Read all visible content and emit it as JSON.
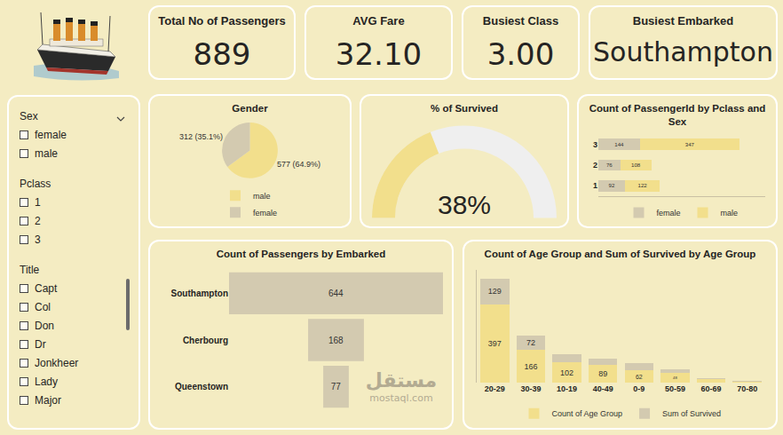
{
  "cards": [
    {
      "title": "Total No of Passengers",
      "value": "889"
    },
    {
      "title": "AVG Fare",
      "value": "32.10"
    },
    {
      "title": "Busiest Class",
      "value": "3.00"
    },
    {
      "title": "Busiest Embarked",
      "value": "Southampton"
    }
  ],
  "slicer": [
    {
      "title": "Sex",
      "items": [
        "female",
        "male"
      ]
    },
    {
      "title": "Pclass",
      "items": [
        "1",
        "2",
        "3"
      ]
    },
    {
      "title": "Title",
      "items": [
        "Capt",
        "Col",
        "Don",
        "Dr",
        "Jonkheer",
        "Lady",
        "Major"
      ]
    }
  ],
  "watermark": [
    "مستقل",
    "mostaql.com"
  ],
  "chart_data": [
    {
      "type": "pie",
      "title": "Gender",
      "categories": [
        "male",
        "female"
      ],
      "values": [
        577,
        312
      ],
      "value_labels": [
        "577 (64.9%)",
        "312 (35.1%)"
      ],
      "colors": [
        "#F2DF8C",
        "#D3CAB0"
      ],
      "data_labels": true,
      "legend": "bottom"
    },
    {
      "type": "gauge",
      "title": "% of Survived",
      "value": 38,
      "value_label": "38%",
      "range": [
        0,
        100
      ],
      "color": "#F2DF8C",
      "tick_labels": false
    },
    {
      "type": "bar",
      "title": "Count of PassengerId by Pclass and Sex",
      "orientation": "horizontal",
      "stacked": true,
      "categories": [
        "1",
        "2",
        "3"
      ],
      "series": [
        {
          "name": "female",
          "color": "#D3CAB0",
          "values": [
            92,
            76,
            144
          ]
        },
        {
          "name": "male",
          "color": "#F2DF8C",
          "values": [
            122,
            108,
            347
          ]
        }
      ],
      "xlim": [
        0,
        580
      ],
      "xticks": [],
      "tick_labels": "y",
      "data_labels": true,
      "legend": "bottom",
      "grid": false
    },
    {
      "type": "funnel",
      "title": "Count of Passengers by Embarked",
      "categories": [
        "Southampton",
        "Cherbourg",
        "Queenstown"
      ],
      "values": [
        644,
        168,
        77
      ],
      "color": "#D3CAB0",
      "xlim": [
        -322,
        322
      ],
      "xticks": [],
      "tick_labels": "y",
      "data_labels": true
    },
    {
      "type": "bar",
      "title": "Count of Age Group and Sum of Survived by Age Group",
      "stacked": true,
      "categories": [
        "20-29",
        "30-39",
        "10-19",
        "40-49",
        "0-9",
        "50-59",
        "60-69",
        "70-80"
      ],
      "series": [
        {
          "name": "Count of Age Group",
          "color": "#F2DF8C",
          "values": [
            397,
            166,
            102,
            89,
            62,
            48,
            19,
            7
          ],
          "value_labels": [
            "397",
            "166",
            "102",
            "89",
            "62",
            "48",
            null,
            null
          ]
        },
        {
          "name": "Sum of Survived",
          "color": "#D3CAB0",
          "values": [
            129,
            72,
            41,
            34,
            38,
            20,
            6,
            1
          ],
          "value_labels": [
            "129",
            "72",
            null,
            null,
            null,
            null,
            null,
            null
          ]
        }
      ],
      "ylim": [
        0,
        570
      ],
      "yticks": [],
      "tick_labels": "x",
      "data_labels": true,
      "legend": "bottom",
      "grid": false
    }
  ]
}
